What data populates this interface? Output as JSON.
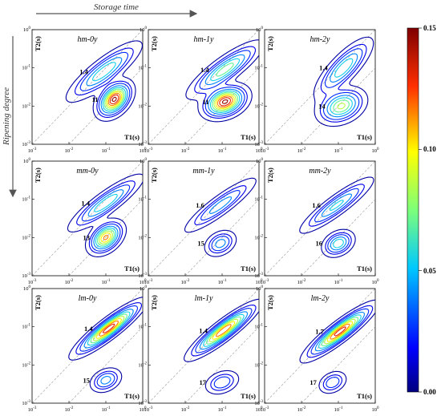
{
  "figure": {
    "x_arrow_label": "Storage time",
    "y_arrow_label": "Ripening degree",
    "colorbar": {
      "min": 0.0,
      "max": 0.15,
      "tick_labels": [
        "0.15",
        "0.10",
        "0.05",
        "0.00"
      ]
    }
  },
  "chart_data": [
    {
      "type": "heatmap",
      "title": "hm-0y",
      "xlabel": "T1(s)",
      "ylabel": "T2(s)",
      "xlim": [
        0.001,
        1
      ],
      "ylim": [
        0.001,
        1
      ],
      "scale": "log",
      "peaks": [
        {
          "ratio_label": "1.4",
          "x": 0.09,
          "y": 0.08,
          "sx": 0.45,
          "sy": 0.35,
          "rho": 0.85,
          "amp": 0.07
        },
        {
          "ratio_label": "11",
          "x": 0.17,
          "y": 0.015,
          "sx": 0.22,
          "sy": 0.22,
          "rho": 0.4,
          "amp": 0.15
        }
      ],
      "ratio_labels": [
        "1.4",
        "11"
      ]
    },
    {
      "type": "heatmap",
      "title": "hm-1y",
      "xlabel": "T1(s)",
      "ylabel": "T2(s)",
      "xlim": [
        0.001,
        1
      ],
      "ylim": [
        0.001,
        1
      ],
      "scale": "log",
      "peaks": [
        {
          "ratio_label": "1.4",
          "x": 0.12,
          "y": 0.09,
          "sx": 0.45,
          "sy": 0.33,
          "rho": 0.85,
          "amp": 0.08
        },
        {
          "ratio_label": "11",
          "x": 0.12,
          "y": 0.013,
          "sx": 0.28,
          "sy": 0.2,
          "rho": 0.3,
          "amp": 0.15
        }
      ],
      "ratio_labels": [
        "1.4",
        "11"
      ]
    },
    {
      "type": "heatmap",
      "title": "hm-2y",
      "xlabel": "T1(s)",
      "ylabel": "T2(s)",
      "xlim": [
        0.001,
        1
      ],
      "ylim": [
        0.001,
        1
      ],
      "scale": "log",
      "peaks": [
        {
          "ratio_label": "1.4",
          "x": 0.14,
          "y": 0.1,
          "sx": 0.35,
          "sy": 0.35,
          "rho": 0.8,
          "amp": 0.07
        },
        {
          "ratio_label": "14",
          "x": 0.12,
          "y": 0.01,
          "sx": 0.3,
          "sy": 0.22,
          "rho": 0.3,
          "amp": 0.09
        }
      ],
      "ratio_labels": [
        "1.4",
        "14"
      ]
    },
    {
      "type": "heatmap",
      "title": "mm-0y",
      "xlabel": "T1(s)",
      "ylabel": "T2(s)",
      "xlim": [
        0.001,
        1
      ],
      "ylim": [
        0.001,
        1
      ],
      "scale": "log",
      "peaks": [
        {
          "ratio_label": "1.4",
          "x": 0.1,
          "y": 0.08,
          "sx": 0.45,
          "sy": 0.33,
          "rho": 0.88,
          "amp": 0.07
        },
        {
          "ratio_label": "13",
          "x": 0.1,
          "y": 0.01,
          "sx": 0.22,
          "sy": 0.2,
          "rho": 0.4,
          "amp": 0.12
        }
      ],
      "ratio_labels": [
        "1.4",
        "13"
      ]
    },
    {
      "type": "heatmap",
      "title": "mm-1y",
      "xlabel": "T1(s)",
      "ylabel": "T2(s)",
      "xlim": [
        0.001,
        1
      ],
      "ylim": [
        0.001,
        1
      ],
      "scale": "log",
      "peaks": [
        {
          "ratio_label": "1.6",
          "x": 0.09,
          "y": 0.07,
          "sx": 0.45,
          "sy": 0.33,
          "rho": 0.9,
          "amp": 0.05
        },
        {
          "ratio_label": "15",
          "x": 0.09,
          "y": 0.007,
          "sx": 0.2,
          "sy": 0.16,
          "rho": 0.3,
          "amp": 0.05
        }
      ],
      "ratio_labels": [
        "1.6",
        "15"
      ]
    },
    {
      "type": "heatmap",
      "title": "mm-2y",
      "xlabel": "T1(s)",
      "ylabel": "T2(s)",
      "xlim": [
        0.001,
        1
      ],
      "ylim": [
        0.001,
        1
      ],
      "scale": "log",
      "peaks": [
        {
          "ratio_label": "1.6",
          "x": 0.09,
          "y": 0.07,
          "sx": 0.45,
          "sy": 0.33,
          "rho": 0.9,
          "amp": 0.06
        },
        {
          "ratio_label": "16",
          "x": 0.1,
          "y": 0.007,
          "sx": 0.2,
          "sy": 0.16,
          "rho": 0.3,
          "amp": 0.07
        }
      ],
      "ratio_labels": [
        "1.6",
        "16"
      ]
    },
    {
      "type": "heatmap",
      "title": "lm-0y",
      "xlabel": "T1(s)",
      "ylabel": "T2(s)",
      "xlim": [
        0.001,
        1
      ],
      "ylim": [
        0.001,
        1
      ],
      "scale": "log",
      "peaks": [
        {
          "ratio_label": "1.4",
          "x": 0.12,
          "y": 0.09,
          "sx": 0.42,
          "sy": 0.32,
          "rho": 0.9,
          "amp": 0.14
        },
        {
          "ratio_label": "15",
          "x": 0.1,
          "y": 0.004,
          "sx": 0.2,
          "sy": 0.15,
          "rho": 0.3,
          "amp": 0.05
        }
      ],
      "ratio_labels": [
        "1.4",
        "15"
      ]
    },
    {
      "type": "heatmap",
      "title": "lm-1y",
      "xlabel": "T1(s)",
      "ylabel": "T2(s)",
      "xlim": [
        0.001,
        1
      ],
      "ylim": [
        0.001,
        1
      ],
      "scale": "log",
      "peaks": [
        {
          "ratio_label": "1.4",
          "x": 0.11,
          "y": 0.08,
          "sx": 0.42,
          "sy": 0.32,
          "rho": 0.9,
          "amp": 0.13
        },
        {
          "ratio_label": "17",
          "x": 0.1,
          "y": 0.0035,
          "sx": 0.22,
          "sy": 0.15,
          "rho": 0.3,
          "amp": 0.04
        }
      ],
      "ratio_labels": [
        "1.4",
        "17"
      ]
    },
    {
      "type": "heatmap",
      "title": "lm-2y",
      "xlabel": "T1(s)",
      "ylabel": "T2(s)",
      "xlim": [
        0.001,
        1
      ],
      "ylim": [
        0.001,
        1
      ],
      "scale": "log",
      "peaks": [
        {
          "ratio_label": "1.7",
          "x": 0.11,
          "y": 0.075,
          "sx": 0.42,
          "sy": 0.32,
          "rho": 0.9,
          "amp": 0.14
        },
        {
          "ratio_label": "17",
          "x": 0.07,
          "y": 0.0035,
          "sx": 0.18,
          "sy": 0.14,
          "rho": 0.3,
          "amp": 0.04
        }
      ],
      "ratio_labels": [
        "1.7",
        "17"
      ]
    }
  ]
}
